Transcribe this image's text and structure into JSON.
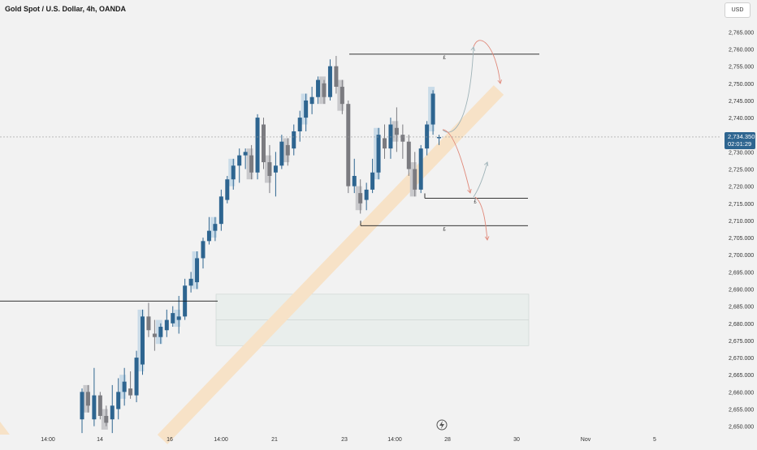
{
  "header": {
    "title": "Gold Spot / U.S. Dollar, 4h, OANDA",
    "currency": "USD"
  },
  "price_label": {
    "price": "2,734.350",
    "countdown": "02:01:29"
  },
  "colors": {
    "up": "#2e6590",
    "down": "#7b7b80",
    "up_ghost": "#c9dbe8",
    "down_ghost": "#c9c9cc",
    "channel": "#f7e2c7",
    "arrow_up": "#9fb3b8",
    "arrow_down": "#e0897a",
    "zone": "#e6ecea"
  },
  "chart_data": {
    "type": "candlestick",
    "title": "Gold Spot / U.S. Dollar, 4h, OANDA",
    "y_unit": "USD",
    "ylim": [
      2648.5,
      2771
    ],
    "y_ticks": [
      2765,
      2760,
      2755,
      2750,
      2745,
      2740,
      2735,
      2730,
      2725,
      2720,
      2715,
      2710,
      2705,
      2700,
      2695,
      2690,
      2685,
      2680,
      2675,
      2670,
      2665,
      2660,
      2655,
      2650
    ],
    "y_tick_labels": [
      "2,765.000",
      "2,760.000",
      "2,755.000",
      "2,750.000",
      "2,745.000",
      "2,740.000",
      "2,735.000",
      "2,730.000",
      "2,725.000",
      "2,720.000",
      "2,715.000",
      "2,710.000",
      "2,705.000",
      "2,700.000",
      "2,695.000",
      "2,690.000",
      "2,685.000",
      "2,680.000",
      "2,675.000",
      "2,670.000",
      "2,665.000",
      "2,660.000",
      "2,655.000",
      "2,650.000"
    ],
    "x_tick_labels": [
      "14:00",
      "14",
      "16",
      "14:00",
      "21",
      "23",
      "14:00",
      "28",
      "30",
      "Nov",
      "5"
    ],
    "current_price": 2734.35,
    "candles": [
      {
        "o": 2652,
        "h": 2661,
        "l": 2648,
        "c": 2660
      },
      {
        "o": 2660,
        "h": 2662,
        "l": 2654,
        "c": 2656
      },
      {
        "o": 2652,
        "h": 2667,
        "l": 2650,
        "c": 2659
      },
      {
        "o": 2659,
        "h": 2660,
        "l": 2652,
        "c": 2653
      },
      {
        "o": 2653,
        "h": 2656,
        "l": 2650,
        "c": 2651
      },
      {
        "o": 2652,
        "h": 2662,
        "l": 2648,
        "c": 2656
      },
      {
        "o": 2655,
        "h": 2664,
        "l": 2652,
        "c": 2660
      },
      {
        "o": 2660,
        "h": 2667,
        "l": 2656,
        "c": 2663
      },
      {
        "o": 2661,
        "h": 2666,
        "l": 2658,
        "c": 2659
      },
      {
        "o": 2659,
        "h": 2672,
        "l": 2657,
        "c": 2670
      },
      {
        "o": 2668,
        "h": 2684,
        "l": 2665,
        "c": 2682
      },
      {
        "o": 2682,
        "h": 2686,
        "l": 2676,
        "c": 2678
      },
      {
        "o": 2677,
        "h": 2681,
        "l": 2672,
        "c": 2676
      },
      {
        "o": 2676,
        "h": 2680,
        "l": 2674,
        "c": 2679
      },
      {
        "o": 2678,
        "h": 2684,
        "l": 2676,
        "c": 2681
      },
      {
        "o": 2680,
        "h": 2685,
        "l": 2679,
        "c": 2683
      },
      {
        "o": 2681,
        "h": 2688,
        "l": 2677,
        "c": 2682
      },
      {
        "o": 2682,
        "h": 2693,
        "l": 2681,
        "c": 2691
      },
      {
        "o": 2691,
        "h": 2695,
        "l": 2689,
        "c": 2693
      },
      {
        "o": 2692,
        "h": 2701,
        "l": 2690,
        "c": 2699
      },
      {
        "o": 2699,
        "h": 2705,
        "l": 2696,
        "c": 2704
      },
      {
        "o": 2704,
        "h": 2711,
        "l": 2703,
        "c": 2707
      },
      {
        "o": 2707,
        "h": 2711,
        "l": 2704,
        "c": 2709
      },
      {
        "o": 2709,
        "h": 2719,
        "l": 2707,
        "c": 2717
      },
      {
        "o": 2716,
        "h": 2723,
        "l": 2715,
        "c": 2722
      },
      {
        "o": 2722,
        "h": 2728,
        "l": 2719,
        "c": 2726
      },
      {
        "o": 2726,
        "h": 2731,
        "l": 2721,
        "c": 2729
      },
      {
        "o": 2729,
        "h": 2731,
        "l": 2725,
        "c": 2730
      },
      {
        "o": 2729,
        "h": 2732,
        "l": 2722,
        "c": 2724
      },
      {
        "o": 2724,
        "h": 2741,
        "l": 2722,
        "c": 2740
      },
      {
        "o": 2738,
        "h": 2740,
        "l": 2725,
        "c": 2727
      },
      {
        "o": 2727,
        "h": 2732,
        "l": 2718,
        "c": 2723
      },
      {
        "o": 2724,
        "h": 2730,
        "l": 2717,
        "c": 2726
      },
      {
        "o": 2726,
        "h": 2735,
        "l": 2725,
        "c": 2733
      },
      {
        "o": 2732,
        "h": 2734,
        "l": 2726,
        "c": 2729
      },
      {
        "o": 2731,
        "h": 2738,
        "l": 2729,
        "c": 2736
      },
      {
        "o": 2736,
        "h": 2742,
        "l": 2733,
        "c": 2740
      },
      {
        "o": 2740,
        "h": 2747,
        "l": 2736,
        "c": 2745
      },
      {
        "o": 2744,
        "h": 2749,
        "l": 2741,
        "c": 2746
      },
      {
        "o": 2746,
        "h": 2752,
        "l": 2744,
        "c": 2751
      },
      {
        "o": 2750,
        "h": 2751,
        "l": 2744,
        "c": 2746
      },
      {
        "o": 2746,
        "h": 2757,
        "l": 2745,
        "c": 2755
      },
      {
        "o": 2755,
        "h": 2758,
        "l": 2747,
        "c": 2749
      },
      {
        "o": 2749,
        "h": 2751,
        "l": 2741,
        "c": 2744
      },
      {
        "o": 2744,
        "h": 2745,
        "l": 2718,
        "c": 2720
      },
      {
        "o": 2720,
        "h": 2728,
        "l": 2718,
        "c": 2723
      },
      {
        "o": 2718,
        "h": 2722,
        "l": 2712,
        "c": 2715
      },
      {
        "o": 2716,
        "h": 2721,
        "l": 2713,
        "c": 2719
      },
      {
        "o": 2719,
        "h": 2728,
        "l": 2718,
        "c": 2724
      },
      {
        "o": 2724,
        "h": 2737,
        "l": 2722,
        "c": 2735
      },
      {
        "o": 2734,
        "h": 2738,
        "l": 2728,
        "c": 2731
      },
      {
        "o": 2731,
        "h": 2740,
        "l": 2728,
        "c": 2738
      },
      {
        "o": 2737,
        "h": 2743,
        "l": 2730,
        "c": 2735
      },
      {
        "o": 2735,
        "h": 2738,
        "l": 2728,
        "c": 2733
      },
      {
        "o": 2733,
        "h": 2735,
        "l": 2723,
        "c": 2725
      },
      {
        "o": 2725,
        "h": 2730,
        "l": 2717,
        "c": 2719
      },
      {
        "o": 2719,
        "h": 2732,
        "l": 2718,
        "c": 2731
      },
      {
        "o": 2731,
        "h": 2739,
        "l": 2729,
        "c": 2738
      },
      {
        "o": 2738,
        "h": 2748,
        "l": 2735,
        "c": 2747
      },
      {
        "o": 2734,
        "h": 2735,
        "l": 2732,
        "c": 2734.35
      }
    ],
    "levels": [
      {
        "name": "top",
        "price": 2758.5,
        "label": "£"
      },
      {
        "name": "mid",
        "price": 2716.5,
        "label": "£"
      },
      {
        "name": "low",
        "price": 2708.5,
        "label": "£"
      },
      {
        "name": "left",
        "price": 2686.5,
        "label": ""
      }
    ],
    "zone": {
      "top": 2688.5,
      "bottom": 2673.5
    },
    "channel": {
      "from": 2640,
      "to": 2748
    }
  }
}
